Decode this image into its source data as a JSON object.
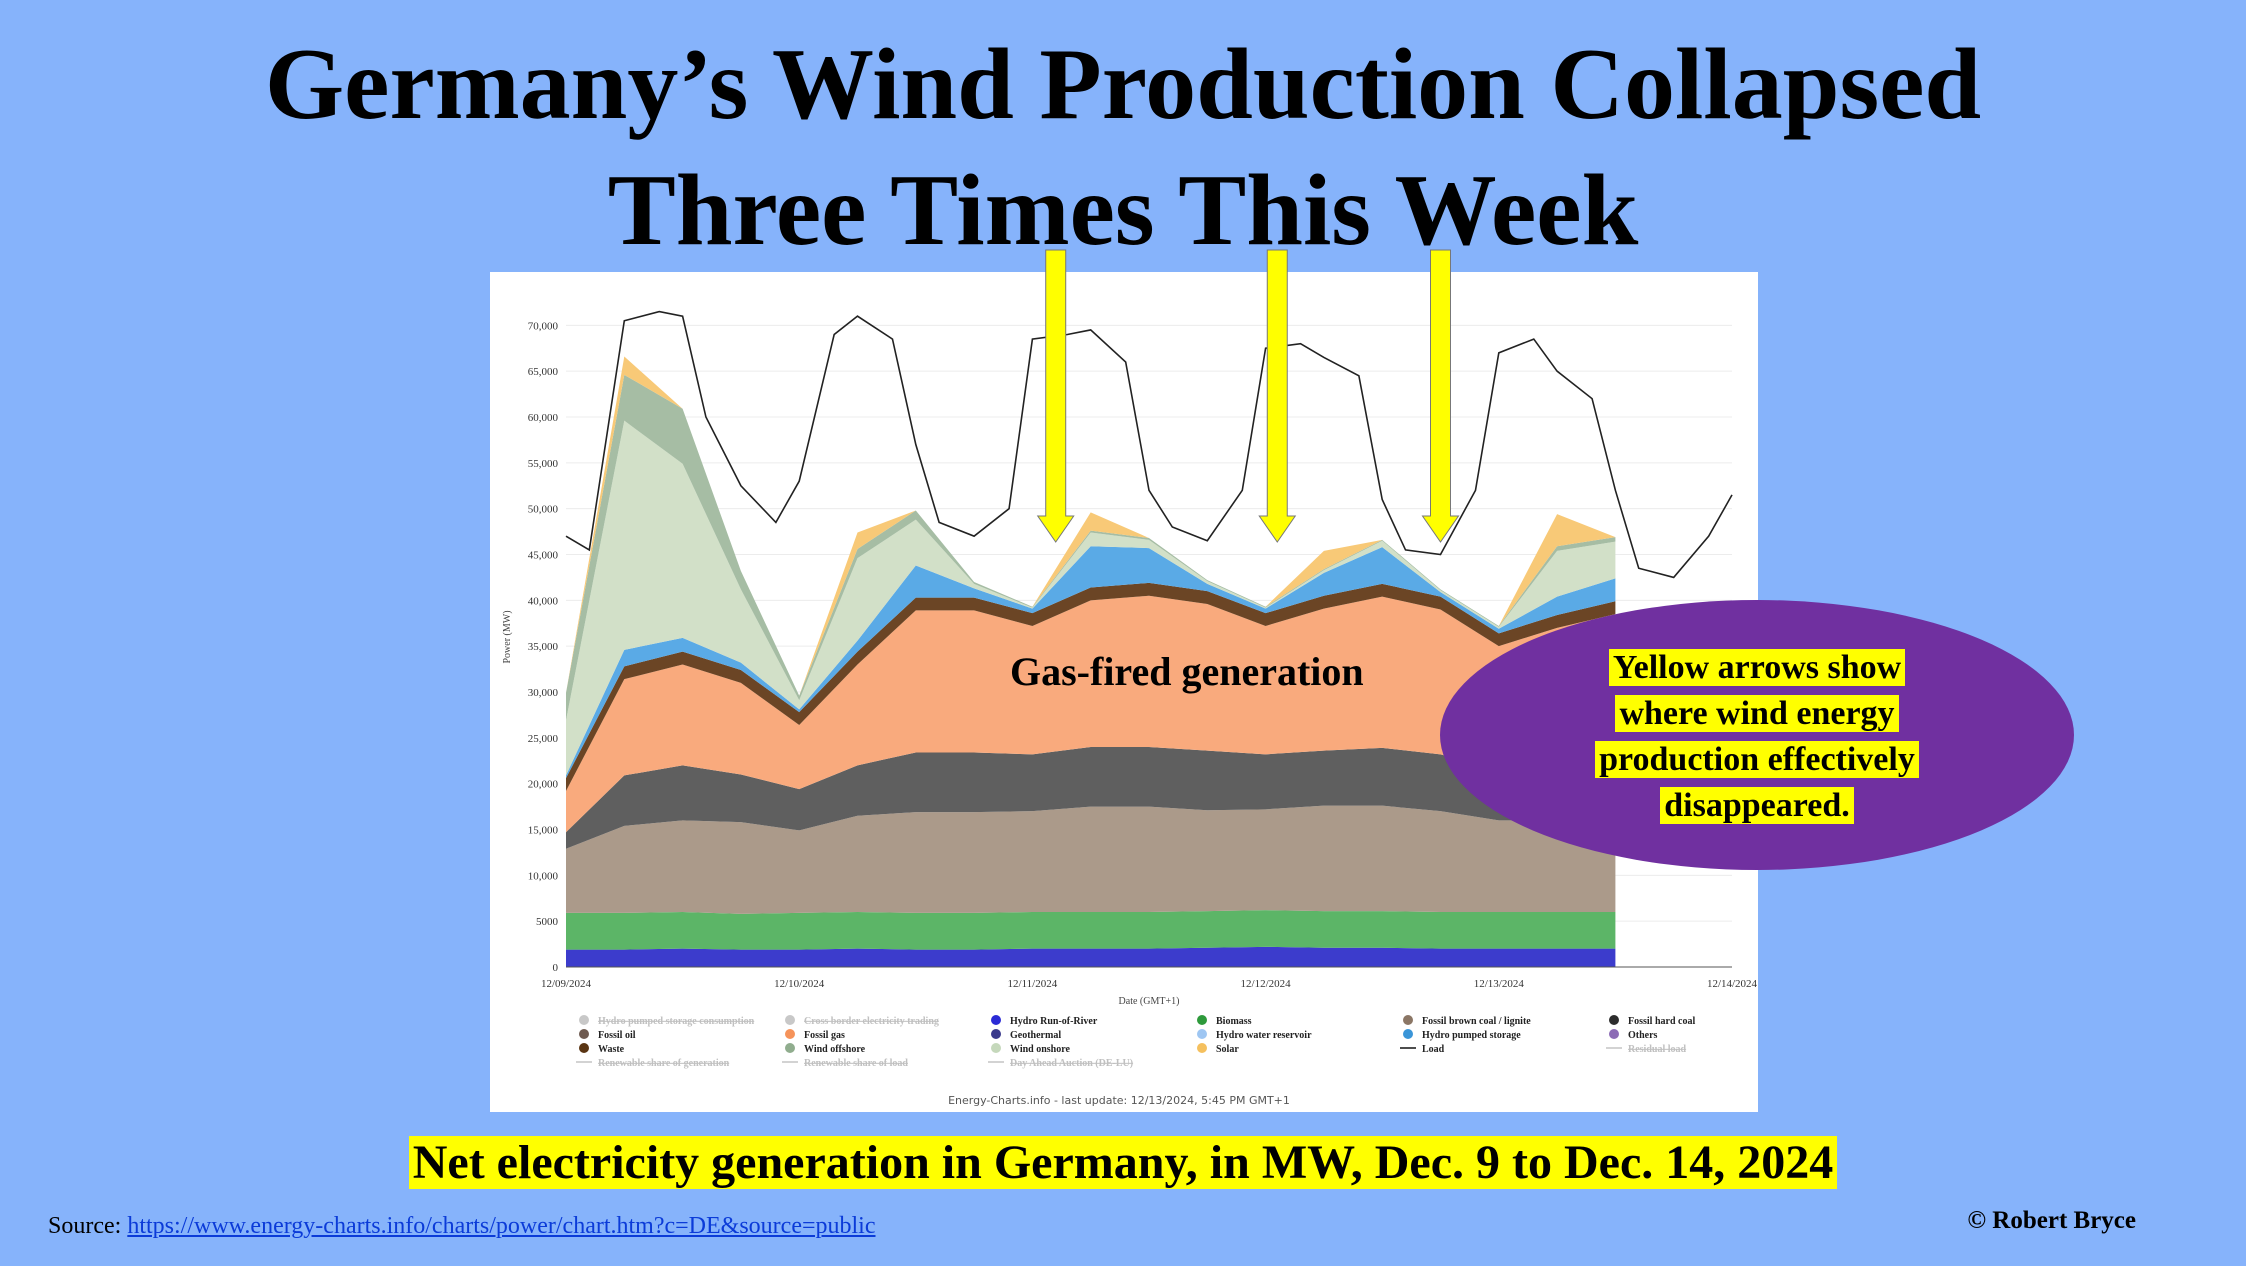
{
  "title_line1": "Germany’s Wind Production Collapsed",
  "title_line2": "Three Times This Week",
  "caption": "Net electricity generation in Germany, in MW, Dec. 9 to Dec. 14, 2024",
  "source_label": "Source: ",
  "source_url": "https://www.energy-charts.info/charts/power/chart.htm?c=DE&source=public",
  "copyright": "© Robert Bryce",
  "annotation_gas": "Gas-fired generation",
  "annotation_oval": [
    "Yellow arrows show",
    "where wind energy",
    "production effectively",
    "disappeared."
  ],
  "colors": {
    "background": "#86b3fb",
    "arrow": "#ffff00",
    "oval": "#7030a0"
  },
  "chart_data": {
    "type": "area",
    "title": "",
    "xlabel": "Date (GMT+1)",
    "ylabel": "Power (MW)",
    "ylim": [
      0,
      72000
    ],
    "yticks": [
      0,
      5000,
      10000,
      15000,
      20000,
      25000,
      30000,
      35000,
      40000,
      45000,
      50000,
      55000,
      60000,
      65000,
      70000
    ],
    "ytick_labels": [
      "0",
      "5000",
      "10,000",
      "15,000",
      "20,000",
      "25,000",
      "30,000",
      "35,000",
      "40,000",
      "45,000",
      "50,000",
      "55,000",
      "60,000",
      "65,000",
      "70,000"
    ],
    "xlim": [
      0,
      5.0
    ],
    "xticks": [
      0,
      1,
      2,
      3,
      4,
      5
    ],
    "xtick_labels": [
      "12/09/2024",
      "12/10/2024",
      "12/11/2024",
      "12/12/2024",
      "12/13/2024",
      "12/14/2024"
    ],
    "stacked": true,
    "x": [
      0.0,
      0.25,
      0.5,
      0.75,
      1.0,
      1.25,
      1.5,
      1.75,
      2.0,
      2.25,
      2.5,
      2.75,
      3.0,
      3.25,
      3.5,
      3.75,
      4.0,
      4.25,
      4.5
    ],
    "series": [
      {
        "name": "Hydro Run-of-River",
        "color": "#3c3ccc",
        "values": [
          1900,
          1900,
          2000,
          1900,
          1900,
          2000,
          1900,
          1900,
          2000,
          2000,
          2000,
          2100,
          2200,
          2100,
          2100,
          2000,
          2000,
          2000,
          2000
        ]
      },
      {
        "name": "Biomass",
        "color": "#5cb567",
        "values": [
          4000,
          4000,
          4000,
          3900,
          4000,
          4000,
          4000,
          4000,
          4000,
          4000,
          4000,
          4000,
          4000,
          4000,
          4000,
          4000,
          4000,
          4000,
          4000
        ]
      },
      {
        "name": "Fossil brown coal / lignite",
        "color": "#ab9a8a",
        "values": [
          7000,
          9500,
          10000,
          10000,
          9000,
          10500,
          11000,
          11000,
          11000,
          11500,
          11500,
          11000,
          11000,
          11500,
          11500,
          11000,
          10000,
          10000,
          10000
        ]
      },
      {
        "name": "Fossil hard coal",
        "color": "#5f5f5f",
        "values": [
          1800,
          5500,
          6000,
          5200,
          4500,
          5500,
          6500,
          6500,
          6200,
          6500,
          6500,
          6500,
          6000,
          6000,
          6300,
          6200,
          5500,
          6000,
          6000
        ]
      },
      {
        "name": "Fossil gas",
        "color": "#f9aa7d",
        "values": [
          4500,
          10500,
          11000,
          10000,
          7000,
          11000,
          15500,
          15500,
          14000,
          16000,
          16500,
          16000,
          14000,
          15500,
          16500,
          15800,
          13500,
          15000,
          16500
        ]
      },
      {
        "name": "Waste",
        "color": "#6b4525",
        "values": [
          1400,
          1400,
          1400,
          1400,
          1400,
          1400,
          1400,
          1400,
          1400,
          1400,
          1400,
          1400,
          1400,
          1400,
          1400,
          1400,
          1400,
          1400,
          1400
        ]
      },
      {
        "name": "Hydro pumped storage",
        "color": "#5aaae6",
        "values": [
          300,
          1800,
          1500,
          800,
          300,
          1200,
          3500,
          1000,
          500,
          4500,
          3800,
          800,
          500,
          2500,
          4000,
          500,
          500,
          2000,
          2500
        ]
      },
      {
        "name": "Wind onshore",
        "color": "#d2e0c8",
        "values": [
          6000,
          25000,
          19000,
          8000,
          1000,
          9000,
          5000,
          500,
          100,
          1500,
          900,
          300,
          100,
          300,
          700,
          200,
          200,
          5000,
          4000
        ]
      },
      {
        "name": "Wind offshore",
        "color": "#a6bda4",
        "values": [
          3000,
          5000,
          6000,
          2000,
          500,
          1000,
          1000,
          200,
          100,
          200,
          200,
          100,
          100,
          100,
          100,
          100,
          100,
          500,
          500
        ]
      },
      {
        "name": "Solar",
        "color": "#f8c977",
        "values": [
          0,
          2000,
          0,
          0,
          0,
          1800,
          0,
          0,
          0,
          2000,
          0,
          0,
          0,
          2000,
          0,
          0,
          0,
          3500,
          0
        ]
      }
    ],
    "load": {
      "name": "Load",
      "x": [
        0.0,
        0.1,
        0.25,
        0.4,
        0.5,
        0.6,
        0.75,
        0.9,
        1.0,
        1.15,
        1.25,
        1.4,
        1.5,
        1.6,
        1.75,
        1.9,
        2.0,
        2.15,
        2.25,
        2.4,
        2.5,
        2.6,
        2.75,
        2.9,
        3.0,
        3.15,
        3.25,
        3.4,
        3.5,
        3.6,
        3.75,
        3.9,
        4.0,
        4.15,
        4.25,
        4.4,
        4.5,
        4.6,
        4.75,
        4.9,
        5.0
      ],
      "values": [
        47000,
        45500,
        70500,
        71500,
        71000,
        60000,
        52500,
        48500,
        53000,
        69000,
        71000,
        68500,
        57000,
        48500,
        47000,
        50000,
        68500,
        69000,
        69500,
        66000,
        52000,
        48000,
        46500,
        52000,
        67500,
        68000,
        66500,
        64500,
        51000,
        45500,
        45000,
        52000,
        67000,
        68500,
        65000,
        62000,
        52000,
        43500,
        42500,
        47000,
        51500
      ]
    },
    "legend": [
      {
        "name": "Hydro pumped storage consumption",
        "color": "#c8c8c8",
        "marker": "dot",
        "disabled": true
      },
      {
        "name": "Cross border electricity trading",
        "color": "#c8c8c8",
        "marker": "dot",
        "disabled": true
      },
      {
        "name": "Hydro Run-of-River",
        "color": "#2b2bd6",
        "marker": "dot"
      },
      {
        "name": "Biomass",
        "color": "#2e9a3b",
        "marker": "dot"
      },
      {
        "name": "Fossil brown coal / lignite",
        "color": "#8b7665",
        "marker": "dot"
      },
      {
        "name": "Fossil hard coal",
        "color": "#2d2d2d",
        "marker": "dot"
      },
      {
        "name": "Fossil oil",
        "color": "#6e5a50",
        "marker": "dot"
      },
      {
        "name": "Fossil gas",
        "color": "#f5935a",
        "marker": "dot"
      },
      {
        "name": "Geothermal",
        "color": "#3a3a8c",
        "marker": "dot"
      },
      {
        "name": "Hydro water reservoir",
        "color": "#9ec6f2",
        "marker": "dot"
      },
      {
        "name": "Hydro pumped storage",
        "color": "#3a95d8",
        "marker": "dot"
      },
      {
        "name": "Others",
        "color": "#8c6bb5",
        "marker": "dot"
      },
      {
        "name": "Waste",
        "color": "#5a3513",
        "marker": "dot"
      },
      {
        "name": "Wind offshore",
        "color": "#90ad8e",
        "marker": "dot"
      },
      {
        "name": "Wind onshore",
        "color": "#c5d8bb",
        "marker": "dot"
      },
      {
        "name": "Solar",
        "color": "#f5c05e",
        "marker": "dot"
      },
      {
        "name": "Load",
        "color": "#222222",
        "marker": "line"
      },
      {
        "name": "Residual load",
        "color": "#c8c8c8",
        "marker": "line",
        "disabled": true
      },
      {
        "name": "Renewable share of generation",
        "color": "#c8c8c8",
        "marker": "line",
        "disabled": true
      },
      {
        "name": "Renewable share of load",
        "color": "#c8c8c8",
        "marker": "line",
        "disabled": true
      },
      {
        "name": "Day Ahead Auction (DE-LU)",
        "color": "#c8c8c8",
        "marker": "line",
        "disabled": true
      }
    ],
    "arrows_x": [
      2.1,
      3.05,
      3.75
    ],
    "footer": "Energy-Charts.info - last update: 12/13/2024, 5:45 PM GMT+1"
  }
}
